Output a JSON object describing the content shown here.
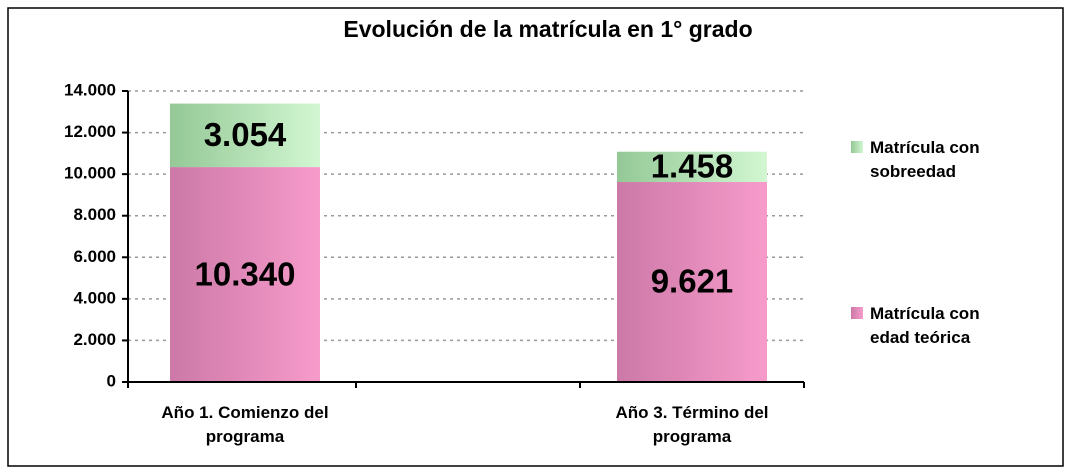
{
  "chart_data": {
    "type": "stacked-bar",
    "title": "Evolución de la matrícula en 1° grado",
    "categories": [
      "Año 1. Comienzo del programa",
      "Año 3. Término del programa"
    ],
    "series": [
      {
        "name": "Matrícula con edad teórica",
        "color": "#f48fc6",
        "values": [
          10340,
          9621
        ],
        "value_labels": [
          "10.340",
          "9.621"
        ]
      },
      {
        "name": "Matrícula con sobreedad",
        "color": "#c4efc4",
        "values": [
          3054,
          1458
        ],
        "value_labels": [
          "3.054",
          "1.458"
        ]
      }
    ],
    "ylim": [
      0,
      14000
    ],
    "yticks": [
      0,
      {
        "value": 2000,
        "label": "2.000"
      },
      {
        "value": 4000,
        "label": "4.000"
      },
      {
        "value": 6000,
        "label": "6.000"
      },
      {
        "value": 8000,
        "label": "8.000"
      },
      {
        "value": 10000,
        "label": "10.000"
      },
      {
        "value": 12000,
        "label": "12.000"
      },
      {
        "value": 14000,
        "label": "14.000"
      }
    ],
    "grid": true,
    "legend": "right"
  }
}
